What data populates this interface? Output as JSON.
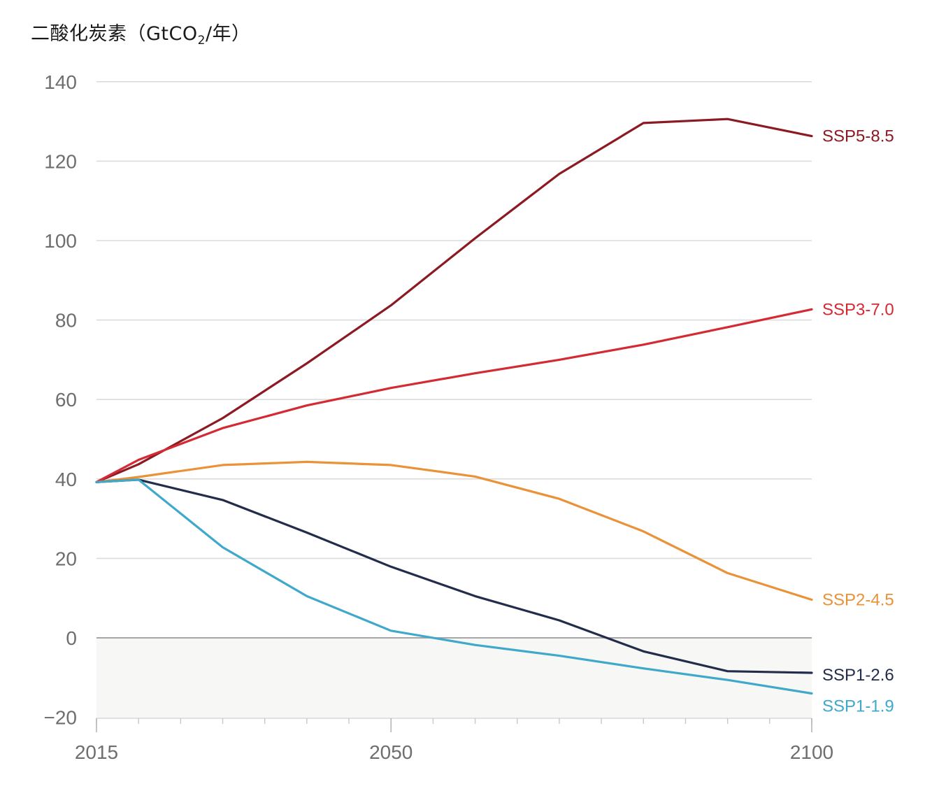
{
  "chart_data": {
    "type": "line",
    "title": "",
    "ylabel_parts": {
      "prefix": "二酸化炭素（GtCO",
      "subscript": "2",
      "suffix": "/年）"
    },
    "xlabel": "",
    "x_ticks": [
      2015,
      2050,
      2100
    ],
    "y_ticks": [
      -20,
      0,
      20,
      40,
      60,
      80,
      100,
      120,
      140
    ],
    "y_tick_labels": [
      "−20",
      "0",
      "20",
      "40",
      "60",
      "80",
      "100",
      "120",
      "140"
    ],
    "xlim": [
      2015,
      2100
    ],
    "ylim": [
      -20,
      140
    ],
    "grid": "horizontal",
    "negative_region_shaded": true,
    "x": [
      2015,
      2020,
      2030,
      2040,
      2050,
      2060,
      2070,
      2080,
      2090,
      2100
    ],
    "series": [
      {
        "name": "SSP5-8.5",
        "color": "#8b1a22",
        "values": [
          39.2,
          43.7,
          55.3,
          69.1,
          83.7,
          100.6,
          116.8,
          129.6,
          130.6,
          126.3
        ]
      },
      {
        "name": "SSP3-7.0",
        "color": "#d42a34",
        "values": [
          39.2,
          44.8,
          52.8,
          58.5,
          62.9,
          66.6,
          70.0,
          73.8,
          78.2,
          82.7
        ]
      },
      {
        "name": "SSP2-4.5",
        "color": "#ea9238",
        "values": [
          39.2,
          40.5,
          43.5,
          44.3,
          43.5,
          40.6,
          35.0,
          26.8,
          16.3,
          9.6
        ]
      },
      {
        "name": "SSP1-2.6",
        "color": "#232d4b",
        "values": [
          39.2,
          39.8,
          34.7,
          26.5,
          17.9,
          10.5,
          4.4,
          -3.4,
          -8.4,
          -8.8
        ]
      },
      {
        "name": "SSP1-1.9",
        "color": "#3fa8cb",
        "values": [
          39.2,
          39.8,
          22.8,
          10.5,
          1.8,
          -1.8,
          -4.5,
          -7.7,
          -10.6,
          -14.0
        ]
      }
    ],
    "colors": {
      "grid": "#dcdcdc",
      "zero_line": "#9a9a9a",
      "negative_fill": "#f7f7f5",
      "tick_text": "#6e6e6e"
    }
  }
}
